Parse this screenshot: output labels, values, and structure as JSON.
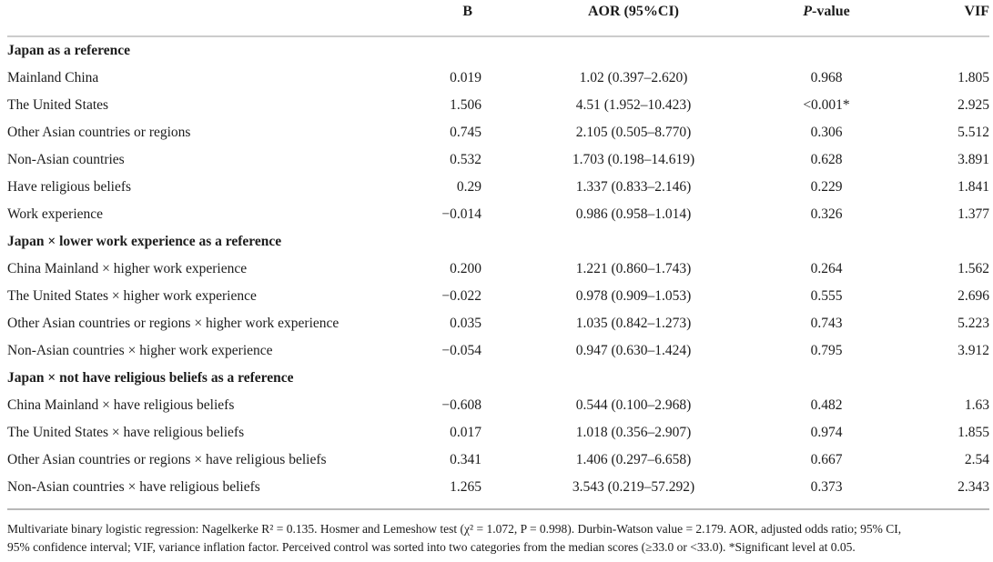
{
  "table": {
    "columns": [
      {
        "name": "col-variable",
        "label": ""
      },
      {
        "name": "col-b",
        "label": "B"
      },
      {
        "name": "col-aor",
        "label": "AOR (95%CI)"
      },
      {
        "name": "col-p-value",
        "italic_prefix": "P",
        "label": "-value"
      },
      {
        "name": "col-vif",
        "label": "VIF"
      }
    ],
    "sections": [
      {
        "header": "Japan as a reference",
        "rows": [
          {
            "label": "Mainland China",
            "b": "0.019",
            "aor": "1.02 (0.397–2.620)",
            "p": "0.968",
            "vif": "1.805"
          },
          {
            "label": "The United States",
            "b": "1.506",
            "aor": "4.51 (1.952–10.423)",
            "p": "<0.001*",
            "vif": "2.925"
          },
          {
            "label": "Other Asian countries or regions",
            "b": "0.745",
            "aor": "2.105 (0.505–8.770)",
            "p": "0.306",
            "vif": "5.512"
          },
          {
            "label": "Non-Asian countries",
            "b": "0.532",
            "aor": "1.703 (0.198–14.619)",
            "p": "0.628",
            "vif": "3.891"
          },
          {
            "label": "Have religious beliefs",
            "b": "0.29",
            "aor": "1.337 (0.833–2.146)",
            "p": "0.229",
            "vif": "1.841"
          },
          {
            "label": "Work experience",
            "b": "−0.014",
            "aor": "0.986 (0.958–1.014)",
            "p": "0.326",
            "vif": "1.377"
          }
        ]
      },
      {
        "header": "Japan × lower work experience as a reference",
        "rows": [
          {
            "label": "China Mainland × higher work experience",
            "b": "0.200",
            "aor": "1.221 (0.860–1.743)",
            "p": "0.264",
            "vif": "1.562"
          },
          {
            "label": "The United States × higher work experience",
            "b": "−0.022",
            "aor": "0.978 (0.909–1.053)",
            "p": "0.555",
            "vif": "2.696"
          },
          {
            "label": "Other Asian countries or regions × higher work experience",
            "b": "0.035",
            "aor": "1.035 (0.842–1.273)",
            "p": "0.743",
            "vif": "5.223"
          },
          {
            "label": "Non-Asian countries × higher work experience",
            "b": "−0.054",
            "aor": "0.947 (0.630–1.424)",
            "p": "0.795",
            "vif": "3.912"
          }
        ]
      },
      {
        "header": "Japan × not have religious beliefs as a reference",
        "rows": [
          {
            "label": "China Mainland × have religious beliefs",
            "b": "−0.608",
            "aor": "0.544 (0.100–2.968)",
            "p": "0.482",
            "vif": "1.63"
          },
          {
            "label": "The United States × have religious beliefs",
            "b": "0.017",
            "aor": "1.018 (0.356–2.907)",
            "p": "0.974",
            "vif": "1.855"
          },
          {
            "label": "Other Asian countries or regions × have religious beliefs",
            "b": "0.341",
            "aor": "1.406 (0.297–6.658)",
            "p": "0.667",
            "vif": "2.54"
          },
          {
            "label": "Non-Asian countries × have religious beliefs",
            "b": "1.265",
            "aor": "3.543 (0.219–57.292)",
            "p": "0.373",
            "vif": "2.343"
          }
        ]
      }
    ]
  },
  "footnote": {
    "lines": [
      "Multivariate binary logistic regression: Nagelkerke R² = 0.135. Hosmer and Lemeshow test (χ² = 1.072, P = 0.998). Durbin-Watson value = 2.179. AOR, adjusted odds ratio; 95% CI,",
      "95% confidence interval; VIF, variance inflation factor. Perceived control was sorted into two categories from the median scores (≥33.0 or <33.0). *Significant level at 0.05."
    ]
  },
  "colors": {
    "text": "#1c1c1c",
    "rule_top": "#cccccc",
    "rule_bottom": "#b8b8b8",
    "background": "#ffffff"
  }
}
